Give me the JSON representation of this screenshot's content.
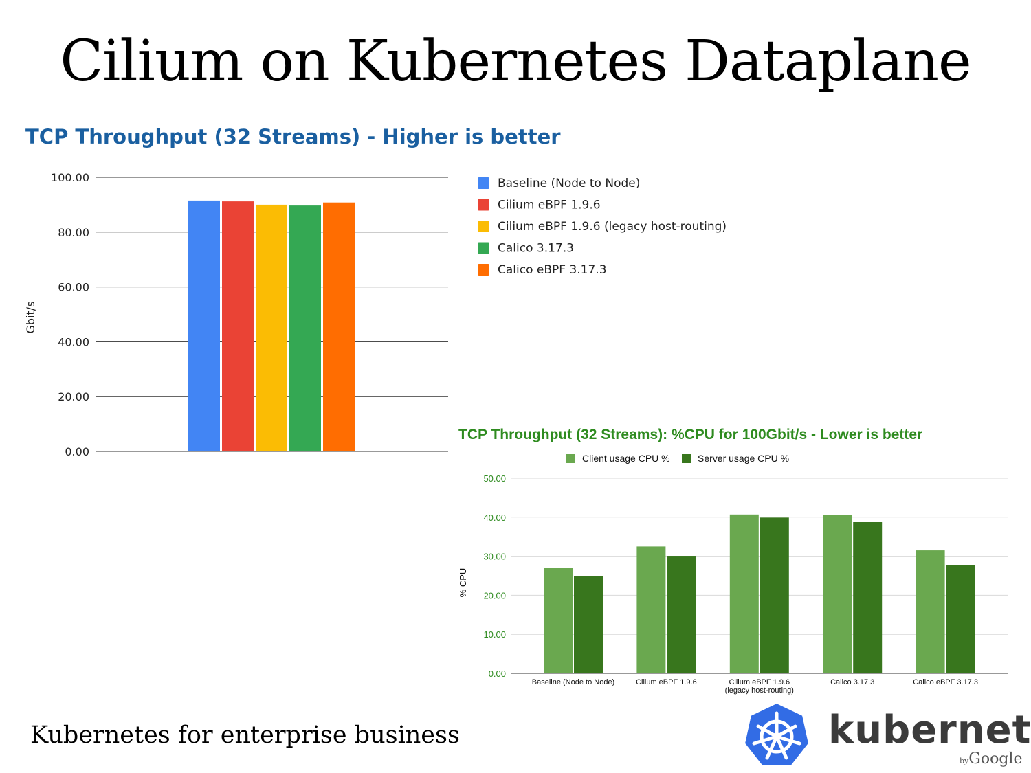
{
  "slide": {
    "title": "Cilium on Kubernetes Dataplane",
    "footer": "Kubernetes for enterprise business",
    "logo_word": "kubernetes",
    "logo_by": "by",
    "logo_google": "Google"
  },
  "chart_data": [
    {
      "type": "bar",
      "title": "TCP Throughput (32 Streams) - Higher is better",
      "xlabel": "",
      "ylabel": "Gbit/s",
      "ylim": [
        0,
        100
      ],
      "yticks": [
        "0.00",
        "20.00",
        "40.00",
        "60.00",
        "80.00",
        "100.00"
      ],
      "grid": true,
      "legend_position": "right",
      "categories": [
        ""
      ],
      "series": [
        {
          "name": "Baseline (Node to Node)",
          "color": "#4285f4",
          "values": [
            91.5
          ]
        },
        {
          "name": "Cilium eBPF 1.9.6",
          "color": "#ea4335",
          "values": [
            91.2
          ]
        },
        {
          "name": "Cilium eBPF 1.9.6 (legacy host-routing)",
          "color": "#fbbc04",
          "values": [
            90.0
          ]
        },
        {
          "name": "Calico 3.17.3",
          "color": "#34a853",
          "values": [
            89.7
          ]
        },
        {
          "name": "Calico eBPF 3.17.3",
          "color": "#ff6d01",
          "values": [
            90.8
          ]
        }
      ]
    },
    {
      "type": "bar",
      "title": "TCP Throughput (32 Streams): %CPU for 100Gbit/s - Lower is better",
      "xlabel": "",
      "ylabel": "% CPU",
      "ylim": [
        0,
        50
      ],
      "yticks": [
        "0.00",
        "10.00",
        "20.00",
        "30.00",
        "40.00",
        "50.00"
      ],
      "grid": true,
      "legend_position": "top",
      "categories": [
        "Baseline (Node to Node)",
        "Cilium eBPF 1.9.6",
        "Cilium eBPF 1.9.6\n(legacy host-routing)",
        "Calico 3.17.3",
        "Calico eBPF 3.17.3"
      ],
      "series": [
        {
          "name": "Client usage CPU %",
          "color": "#6aa84f",
          "values": [
            27.0,
            32.5,
            40.7,
            40.5,
            31.5
          ]
        },
        {
          "name": "Server usage CPU %",
          "color": "#38761d",
          "values": [
            25.0,
            30.1,
            39.9,
            38.8,
            27.8
          ]
        }
      ]
    }
  ]
}
